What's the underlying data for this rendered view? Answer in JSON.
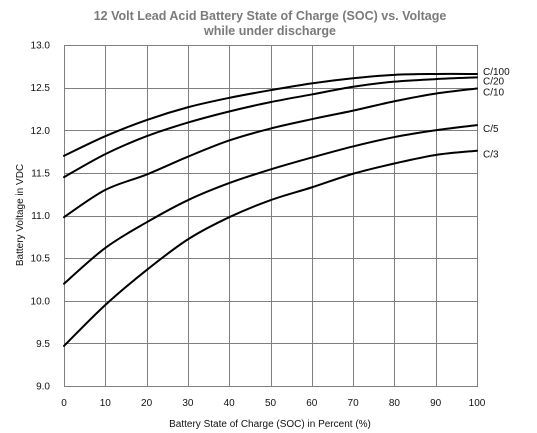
{
  "chart_data": {
    "type": "line",
    "title": "12 Volt Lead Acid Battery State of Charge (SOC) vs. Voltage",
    "subtitle": "while under discharge",
    "xlabel": "Battery State of Charge (SOC) in Percent (%)",
    "ylabel": "Battery Voltage in VDC",
    "xlim": [
      0,
      100
    ],
    "ylim": [
      9.0,
      13.0
    ],
    "x_ticks": [
      "0",
      "10",
      "20",
      "30",
      "40",
      "50",
      "60",
      "70",
      "80",
      "90",
      "100"
    ],
    "y_ticks": [
      "9.0",
      "9.5",
      "10.0",
      "10.5",
      "11.0",
      "11.5",
      "12.0",
      "12.5",
      "13.0"
    ],
    "grid": true,
    "legend": "inline labels at right end of lines",
    "colors": {
      "lines": "#000000",
      "grid": "#7f7f7f",
      "title": "#7a7a7a"
    },
    "x": [
      0,
      10,
      20,
      30,
      40,
      50,
      60,
      70,
      80,
      90,
      100
    ],
    "series": [
      {
        "name": "C/100",
        "values": [
          11.7,
          11.93,
          12.12,
          12.27,
          12.38,
          12.47,
          12.55,
          12.61,
          12.65,
          12.66,
          12.66
        ]
      },
      {
        "name": "C/20",
        "values": [
          11.45,
          11.72,
          11.93,
          12.09,
          12.22,
          12.33,
          12.42,
          12.51,
          12.57,
          12.6,
          12.62
        ]
      },
      {
        "name": "C/10",
        "values": [
          10.98,
          11.3,
          11.48,
          11.69,
          11.88,
          12.02,
          12.13,
          12.23,
          12.34,
          12.43,
          12.49
        ]
      },
      {
        "name": "C/5",
        "values": [
          10.2,
          10.62,
          10.92,
          11.18,
          11.38,
          11.54,
          11.68,
          11.81,
          11.92,
          12.0,
          12.06
        ]
      },
      {
        "name": "C/3",
        "values": [
          9.47,
          9.95,
          10.36,
          10.72,
          10.98,
          11.18,
          11.33,
          11.49,
          11.61,
          11.71,
          11.76
        ]
      }
    ]
  }
}
